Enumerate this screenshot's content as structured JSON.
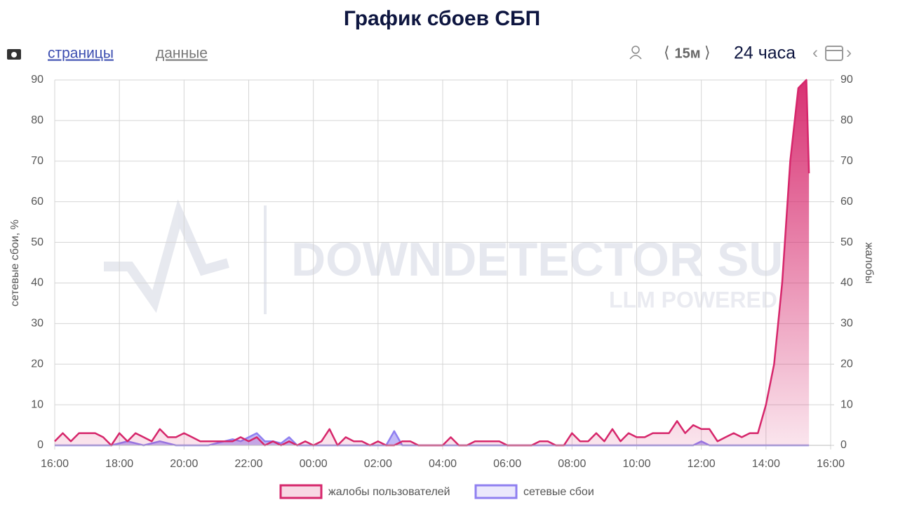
{
  "header": {
    "title": "График сбоев СБП",
    "tabs": [
      "страницы",
      "данные"
    ],
    "interval": "15м",
    "period": "24 часа"
  },
  "watermark": {
    "brand": "DOWNDETECTOR SU",
    "tagline": "LLM POWERED"
  },
  "chart_data": {
    "type": "area",
    "ylabel": "сетевые сбои, %",
    "y2label": "жалобы",
    "x": [
      16,
      16.25,
      16.5,
      16.75,
      17,
      17.25,
      17.5,
      17.75,
      18,
      18.25,
      18.5,
      18.75,
      19,
      19.25,
      19.5,
      19.75,
      20,
      20.25,
      20.5,
      20.75,
      21,
      21.25,
      21.5,
      21.75,
      22,
      22.25,
      22.5,
      22.75,
      23,
      23.25,
      23.5,
      23.75,
      24,
      24.25,
      24.5,
      24.75,
      25,
      25.25,
      25.5,
      25.75,
      26,
      26.25,
      26.5,
      26.75,
      27,
      27.25,
      27.5,
      27.75,
      28,
      28.25,
      28.5,
      28.75,
      29,
      29.25,
      29.5,
      29.75,
      30,
      30.25,
      30.5,
      30.75,
      31,
      31.25,
      31.5,
      31.75,
      32,
      32.25,
      32.5,
      32.75,
      33,
      33.25,
      33.5,
      33.75,
      34,
      34.25,
      34.5,
      34.75,
      35,
      35.25,
      35.5,
      35.75,
      36,
      36.25,
      36.5,
      36.75,
      37,
      37.25,
      37.5,
      37.75,
      38,
      38.25,
      38.5,
      38.75,
      39,
      39.25,
      39.33
    ],
    "series": [
      {
        "name": "жалобы пользователей",
        "color": "#d6266b",
        "axis": "y2",
        "values": [
          1,
          3,
          1,
          3,
          3,
          3,
          2,
          0,
          3,
          1,
          3,
          2,
          1,
          4,
          2,
          2,
          3,
          2,
          1,
          1,
          1,
          1,
          1,
          2,
          1,
          2,
          0,
          1,
          0,
          1,
          0,
          1,
          0,
          1,
          4,
          0,
          2,
          1,
          1,
          0,
          1,
          0,
          0,
          1,
          1,
          0,
          0,
          0,
          0,
          2,
          0,
          0,
          1,
          1,
          1,
          1,
          0,
          0,
          0,
          0,
          1,
          1,
          0,
          0,
          3,
          1,
          1,
          3,
          1,
          4,
          1,
          3,
          2,
          2,
          3,
          3,
          3,
          6,
          3,
          5,
          4,
          4,
          1,
          2,
          3,
          2,
          3,
          3,
          10,
          20,
          40,
          70,
          88,
          90,
          67
        ]
      },
      {
        "name": "сетевые сбои",
        "color": "#8f7ff0",
        "axis": "y",
        "values": [
          0,
          0,
          0,
          0,
          0,
          0,
          0,
          0,
          0.5,
          1,
          0.5,
          0,
          0.5,
          1,
          0.5,
          0,
          0,
          0,
          0,
          0,
          0.5,
          1,
          1.5,
          1,
          2,
          3,
          1,
          1,
          0.5,
          2,
          0,
          0,
          0,
          0,
          0,
          0,
          0,
          0,
          0,
          0,
          0,
          0,
          3.5,
          0,
          0,
          0,
          0,
          0,
          0,
          0,
          0,
          0,
          0,
          0,
          0,
          0,
          0,
          0,
          0,
          0,
          0,
          0,
          0,
          0,
          0,
          0,
          0,
          0,
          0,
          0,
          0,
          0,
          0,
          0,
          0,
          0,
          0,
          0,
          0,
          0,
          1,
          0,
          0,
          0,
          0,
          0,
          0,
          0,
          0,
          0,
          0,
          0,
          0,
          0,
          0
        ]
      }
    ],
    "xlim": [
      16,
      40
    ],
    "xticks": [
      {
        "value": 16,
        "label": "16:00"
      },
      {
        "value": 18,
        "label": "18:00"
      },
      {
        "value": 20,
        "label": "20:00"
      },
      {
        "value": 22,
        "label": "22:00"
      },
      {
        "value": 24,
        "label": "00:00"
      },
      {
        "value": 26,
        "label": "02:00"
      },
      {
        "value": 28,
        "label": "04:00"
      },
      {
        "value": 30,
        "label": "06:00"
      },
      {
        "value": 32,
        "label": "08:00"
      },
      {
        "value": 34,
        "label": "10:00"
      },
      {
        "value": 36,
        "label": "12:00"
      },
      {
        "value": 38,
        "label": "14:00"
      },
      {
        "value": 40,
        "label": "16:00"
      }
    ],
    "ylim": [
      0,
      90
    ],
    "yticks": [
      0,
      10,
      20,
      30,
      40,
      50,
      60,
      70,
      80,
      90
    ],
    "y2lim": [
      0,
      90
    ],
    "y2ticks": [
      0,
      10,
      20,
      30,
      40,
      50,
      60,
      70,
      80,
      90
    ],
    "grid": true
  }
}
